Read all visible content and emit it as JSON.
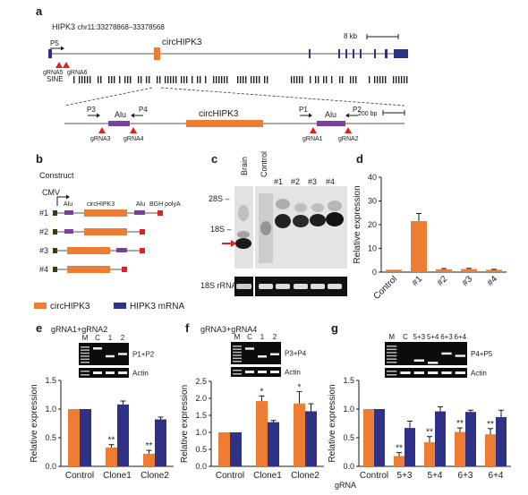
{
  "panel_a": {
    "label": "a",
    "gene_title": "HIPK3",
    "coords": "chr11:33278868–33378568",
    "scale_label": "8 kb",
    "p5_label": "P5",
    "grna5_label": "gRNA5",
    "grna6_label": "gRNA6",
    "circ_label": "circHIPK3",
    "sine_label": "SINE",
    "zoom": {
      "p3": "P3",
      "p4": "P4",
      "p1": "P1",
      "p2": "P2",
      "alu_left": "Alu",
      "alu_right": "Alu",
      "circ_label": "circHIPK3",
      "grna3": "gRNA3",
      "grna4": "gRNA4",
      "grna1": "gRNA1",
      "grna2": "gRNA2",
      "scale_label": "200 bp"
    }
  },
  "panel_b": {
    "label": "b",
    "title": "Construct",
    "cmv": "CMV",
    "alu1": "Alu",
    "circ": "circHIPK3",
    "alu2": "Alu",
    "polya": "BGH polyA",
    "constructs": [
      "#1",
      "#2",
      "#3",
      "#4"
    ]
  },
  "legend": {
    "circ": "circHIPK3",
    "mrna": "HIPK3 mRNA"
  },
  "colors": {
    "circ": "#ee7d34",
    "mrna": "#2e3286",
    "purple": "#7b3fa0",
    "red": "#e0211f",
    "dark_box": "#3b3a10",
    "marker": "#d6231e"
  },
  "panel_c": {
    "label": "c",
    "lanes": [
      "Brain",
      "Control",
      "#1",
      "#2",
      "#3",
      "#4"
    ],
    "marker_28s": "28S –",
    "marker_18s": "18S –",
    "rrna_label": "18S rRNA"
  },
  "panel_e": {
    "label": "e",
    "title": "gRNA1+gRNA2",
    "gel_lanes": [
      "M",
      "C",
      "1",
      "2"
    ],
    "gel_label_top": "P1+P2",
    "gel_label_bottom": "Actin"
  },
  "panel_f": {
    "label": "f",
    "title": "gRNA3+gRNA4",
    "gel_lanes": [
      "M",
      "C",
      "1",
      "2"
    ],
    "gel_label_top": "P3+P4",
    "gel_label_bottom": "Actin"
  },
  "panel_g": {
    "label": "g",
    "gel_lanes": [
      "M",
      "C",
      "5+3",
      "5+4",
      "6+3",
      "6+4"
    ],
    "gel_label_top": "P4+P5",
    "gel_label_bottom": "Actin",
    "grna_label": "gRNA"
  },
  "chart_data": [
    {
      "panel": "d",
      "type": "bar",
      "categories": [
        "Control",
        "#1",
        "#2",
        "#3",
        "#4"
      ],
      "series": [
        {
          "values": [
            1,
            21.5,
            1.2,
            1.3,
            1.0
          ],
          "errors": [
            0,
            3.2,
            0.3,
            0.3,
            0.2
          ]
        }
      ],
      "ylabel": "Relative expression",
      "ylim": [
        0,
        40
      ],
      "yticks": [
        0,
        10,
        20,
        30,
        40
      ]
    },
    {
      "panel": "e",
      "type": "bar",
      "categories": [
        "Control",
        "Clone1",
        "Clone2"
      ],
      "series": [
        {
          "name": "circHIPK3",
          "values": [
            1.0,
            0.33,
            0.22
          ],
          "errors": [
            0,
            0.05,
            0.06
          ],
          "sig": [
            "",
            "**",
            "**"
          ]
        },
        {
          "name": "HIPK3 mRNA",
          "values": [
            1.0,
            1.08,
            0.82
          ],
          "errors": [
            0,
            0.06,
            0.04
          ],
          "sig": [
            "",
            "",
            ""
          ]
        }
      ],
      "ylabel": "Relative expression",
      "ylim": [
        0,
        1.5
      ],
      "yticks": [
        0.0,
        0.5,
        1.0,
        1.5
      ]
    },
    {
      "panel": "f",
      "type": "bar",
      "categories": [
        "Control",
        "Clone1",
        "Clone2"
      ],
      "series": [
        {
          "name": "circHIPK3",
          "values": [
            1.0,
            1.92,
            1.85
          ],
          "errors": [
            0,
            0.15,
            0.35
          ],
          "sig": [
            "",
            "*",
            "*"
          ]
        },
        {
          "name": "HIPK3 mRNA",
          "values": [
            1.0,
            1.3,
            1.62
          ],
          "errors": [
            0,
            0.05,
            0.22
          ],
          "sig": [
            "",
            "",
            ""
          ]
        }
      ],
      "ylabel": "Relative expression",
      "ylim": [
        0,
        2.5
      ],
      "yticks": [
        0.0,
        0.5,
        1.0,
        1.5,
        2.0,
        2.5
      ]
    },
    {
      "panel": "g",
      "type": "bar",
      "categories": [
        "Control",
        "5+3",
        "5+4",
        "6+3",
        "6+4"
      ],
      "series": [
        {
          "name": "circHIPK3",
          "values": [
            1.0,
            0.18,
            0.42,
            0.6,
            0.56
          ],
          "errors": [
            0,
            0.06,
            0.1,
            0.07,
            0.1
          ],
          "sig": [
            "",
            "**",
            "**",
            "**",
            "**"
          ]
        },
        {
          "name": "HIPK3 mRNA",
          "values": [
            1.0,
            0.67,
            0.96,
            0.95,
            0.86
          ],
          "errors": [
            0,
            0.12,
            0.08,
            0.03,
            0.12
          ],
          "sig": [
            "",
            "",
            "",
            "",
            ""
          ]
        }
      ],
      "ylabel": "Relative expression",
      "ylim": [
        0,
        1.5
      ],
      "yticks": [
        0.0,
        0.5,
        1.0,
        1.5
      ]
    }
  ]
}
